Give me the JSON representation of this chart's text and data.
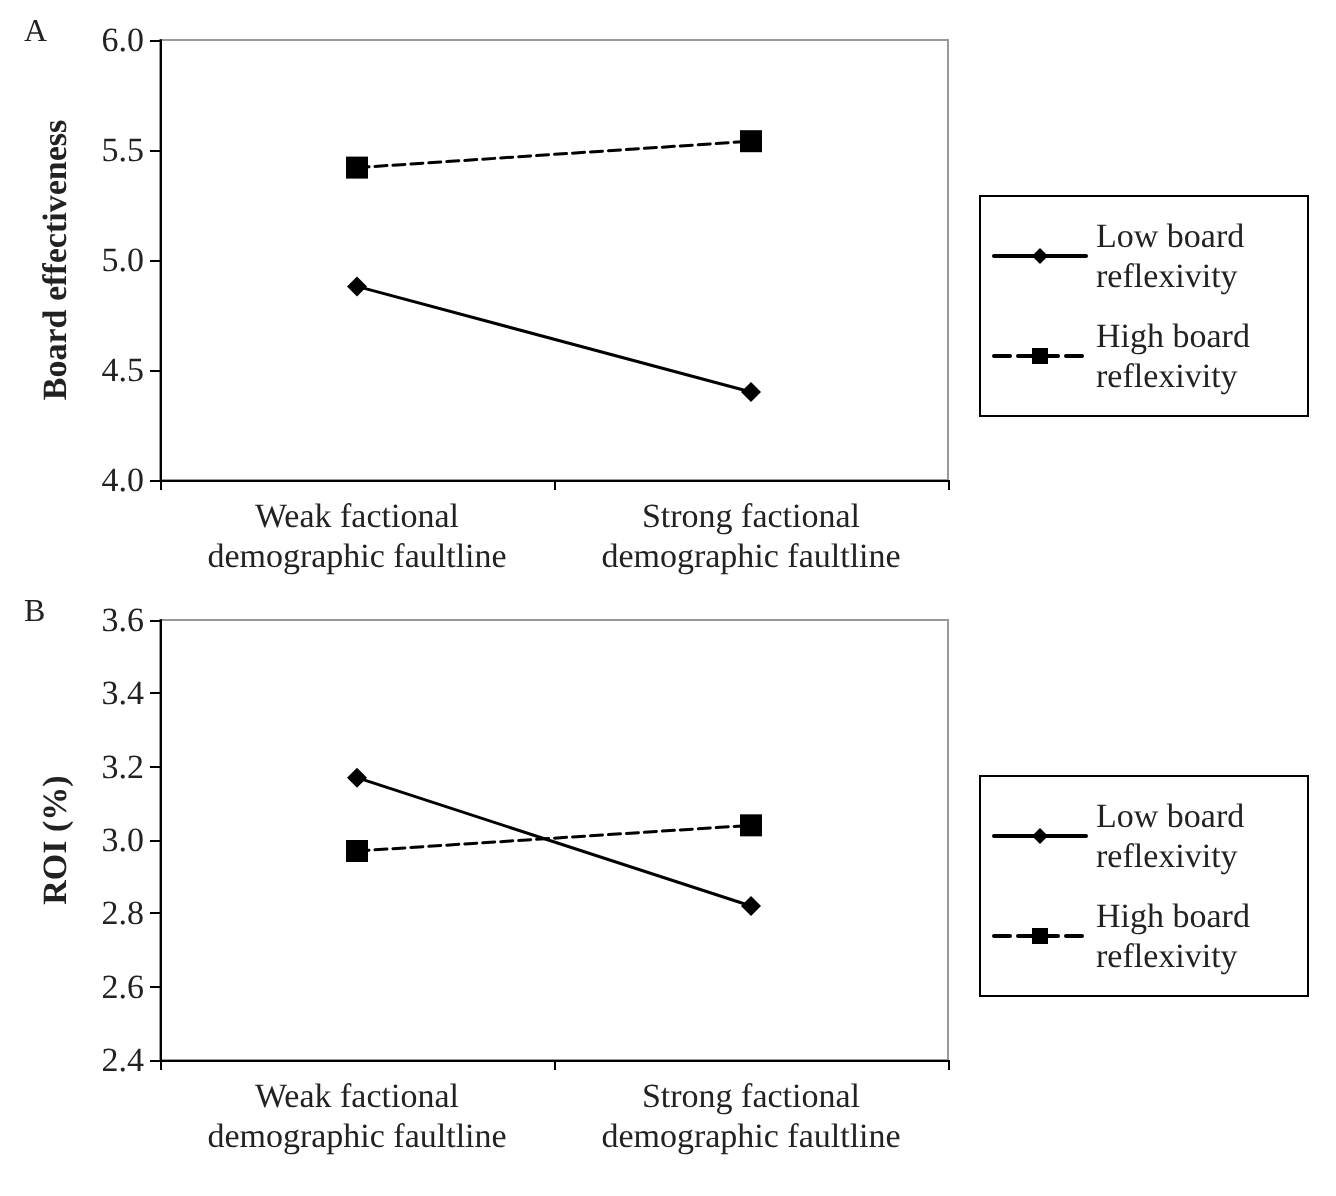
{
  "chart_data": [
    {
      "type": "line",
      "annotations": [
        "A"
      ],
      "ylabel": "Board effectiveness",
      "categories": [
        "Weak factional\ndemographic faultline",
        "Strong factional\ndemographic faultline"
      ],
      "ylim": [
        4.0,
        6.0
      ],
      "yticks": [
        {
          "value": 4,
          "label": "4.0"
        },
        {
          "value": 4.5,
          "label": "4.5"
        },
        {
          "value": 5,
          "label": "5.0"
        },
        {
          "value": 5.5,
          "label": "5.5"
        },
        {
          "value": 6,
          "label": "6.0"
        }
      ],
      "grid": false,
      "legend": "right",
      "series": [
        {
          "name": "Low board reflexivity",
          "color": "#000000",
          "values": [
            4.88,
            4.4
          ],
          "marker": "diamond",
          "line_style": "solid"
        },
        {
          "name": "High board reflexivity",
          "color": "#000000",
          "values": [
            5.42,
            5.54
          ],
          "marker": "square",
          "line_style": "dashed"
        }
      ]
    },
    {
      "type": "line",
      "annotations": [
        "B"
      ],
      "ylabel": "ROI (%)",
      "categories": [
        "Weak factional\ndemographic faultline",
        "Strong factional\ndemographic faultline"
      ],
      "ylim": [
        2.4,
        3.6
      ],
      "yticks": [
        {
          "value": 2.4,
          "label": "2.4"
        },
        {
          "value": 2.6,
          "label": "2.6"
        },
        {
          "value": 2.8,
          "label": "2.8"
        },
        {
          "value": 3.0,
          "label": "3.0"
        },
        {
          "value": 3.2,
          "label": "3.2"
        },
        {
          "value": 3.4,
          "label": "3.4"
        },
        {
          "value": 3.6,
          "label": "3.6"
        }
      ],
      "grid": false,
      "legend": "right",
      "series": [
        {
          "name": "Low board reflexivity",
          "color": "#000000",
          "values": [
            3.17,
            2.82
          ],
          "marker": "diamond",
          "line_style": "solid"
        },
        {
          "name": "High board reflexivity",
          "color": "#000000",
          "values": [
            2.97,
            3.04
          ],
          "marker": "square",
          "line_style": "dashed"
        }
      ]
    }
  ]
}
